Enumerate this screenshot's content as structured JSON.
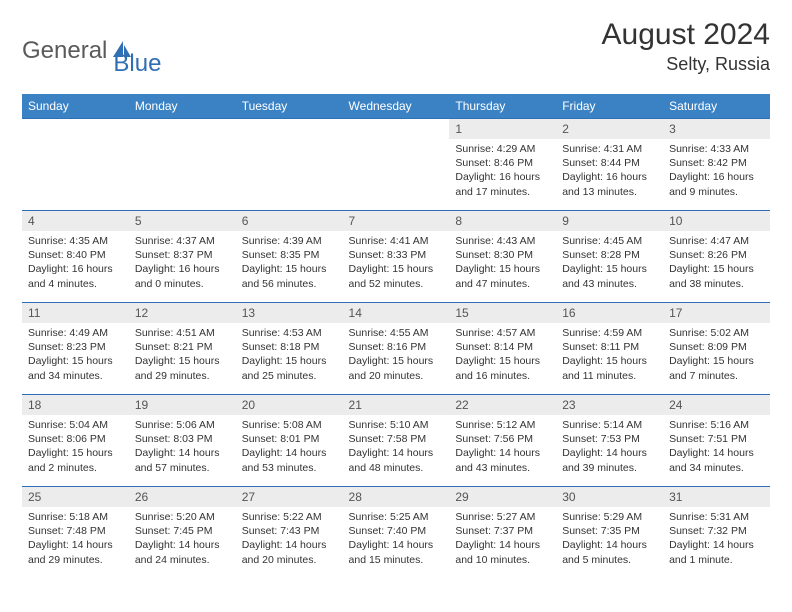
{
  "brand": {
    "part1": "General",
    "part2": "Blue"
  },
  "title": "August 2024",
  "location": "Selty, Russia",
  "colors": {
    "header_bg": "#3b82c4",
    "header_text": "#ffffff",
    "daynum_bg": "#ececec",
    "border": "#2f6fb3",
    "logo_gray": "#5a5a5a",
    "logo_blue": "#2f6fb3"
  },
  "weekdays": [
    "Sunday",
    "Monday",
    "Tuesday",
    "Wednesday",
    "Thursday",
    "Friday",
    "Saturday"
  ],
  "weeks": [
    [
      null,
      null,
      null,
      null,
      {
        "n": "1",
        "sr": "4:29 AM",
        "ss": "8:46 PM",
        "dl": "16 hours and 17 minutes."
      },
      {
        "n": "2",
        "sr": "4:31 AM",
        "ss": "8:44 PM",
        "dl": "16 hours and 13 minutes."
      },
      {
        "n": "3",
        "sr": "4:33 AM",
        "ss": "8:42 PM",
        "dl": "16 hours and 9 minutes."
      }
    ],
    [
      {
        "n": "4",
        "sr": "4:35 AM",
        "ss": "8:40 PM",
        "dl": "16 hours and 4 minutes."
      },
      {
        "n": "5",
        "sr": "4:37 AM",
        "ss": "8:37 PM",
        "dl": "16 hours and 0 minutes."
      },
      {
        "n": "6",
        "sr": "4:39 AM",
        "ss": "8:35 PM",
        "dl": "15 hours and 56 minutes."
      },
      {
        "n": "7",
        "sr": "4:41 AM",
        "ss": "8:33 PM",
        "dl": "15 hours and 52 minutes."
      },
      {
        "n": "8",
        "sr": "4:43 AM",
        "ss": "8:30 PM",
        "dl": "15 hours and 47 minutes."
      },
      {
        "n": "9",
        "sr": "4:45 AM",
        "ss": "8:28 PM",
        "dl": "15 hours and 43 minutes."
      },
      {
        "n": "10",
        "sr": "4:47 AM",
        "ss": "8:26 PM",
        "dl": "15 hours and 38 minutes."
      }
    ],
    [
      {
        "n": "11",
        "sr": "4:49 AM",
        "ss": "8:23 PM",
        "dl": "15 hours and 34 minutes."
      },
      {
        "n": "12",
        "sr": "4:51 AM",
        "ss": "8:21 PM",
        "dl": "15 hours and 29 minutes."
      },
      {
        "n": "13",
        "sr": "4:53 AM",
        "ss": "8:18 PM",
        "dl": "15 hours and 25 minutes."
      },
      {
        "n": "14",
        "sr": "4:55 AM",
        "ss": "8:16 PM",
        "dl": "15 hours and 20 minutes."
      },
      {
        "n": "15",
        "sr": "4:57 AM",
        "ss": "8:14 PM",
        "dl": "15 hours and 16 minutes."
      },
      {
        "n": "16",
        "sr": "4:59 AM",
        "ss": "8:11 PM",
        "dl": "15 hours and 11 minutes."
      },
      {
        "n": "17",
        "sr": "5:02 AM",
        "ss": "8:09 PM",
        "dl": "15 hours and 7 minutes."
      }
    ],
    [
      {
        "n": "18",
        "sr": "5:04 AM",
        "ss": "8:06 PM",
        "dl": "15 hours and 2 minutes."
      },
      {
        "n": "19",
        "sr": "5:06 AM",
        "ss": "8:03 PM",
        "dl": "14 hours and 57 minutes."
      },
      {
        "n": "20",
        "sr": "5:08 AM",
        "ss": "8:01 PM",
        "dl": "14 hours and 53 minutes."
      },
      {
        "n": "21",
        "sr": "5:10 AM",
        "ss": "7:58 PM",
        "dl": "14 hours and 48 minutes."
      },
      {
        "n": "22",
        "sr": "5:12 AM",
        "ss": "7:56 PM",
        "dl": "14 hours and 43 minutes."
      },
      {
        "n": "23",
        "sr": "5:14 AM",
        "ss": "7:53 PM",
        "dl": "14 hours and 39 minutes."
      },
      {
        "n": "24",
        "sr": "5:16 AM",
        "ss": "7:51 PM",
        "dl": "14 hours and 34 minutes."
      }
    ],
    [
      {
        "n": "25",
        "sr": "5:18 AM",
        "ss": "7:48 PM",
        "dl": "14 hours and 29 minutes."
      },
      {
        "n": "26",
        "sr": "5:20 AM",
        "ss": "7:45 PM",
        "dl": "14 hours and 24 minutes."
      },
      {
        "n": "27",
        "sr": "5:22 AM",
        "ss": "7:43 PM",
        "dl": "14 hours and 20 minutes."
      },
      {
        "n": "28",
        "sr": "5:25 AM",
        "ss": "7:40 PM",
        "dl": "14 hours and 15 minutes."
      },
      {
        "n": "29",
        "sr": "5:27 AM",
        "ss": "7:37 PM",
        "dl": "14 hours and 10 minutes."
      },
      {
        "n": "30",
        "sr": "5:29 AM",
        "ss": "7:35 PM",
        "dl": "14 hours and 5 minutes."
      },
      {
        "n": "31",
        "sr": "5:31 AM",
        "ss": "7:32 PM",
        "dl": "14 hours and 1 minute."
      }
    ]
  ],
  "labels": {
    "sunrise": "Sunrise: ",
    "sunset": "Sunset: ",
    "daylight": "Daylight: "
  }
}
